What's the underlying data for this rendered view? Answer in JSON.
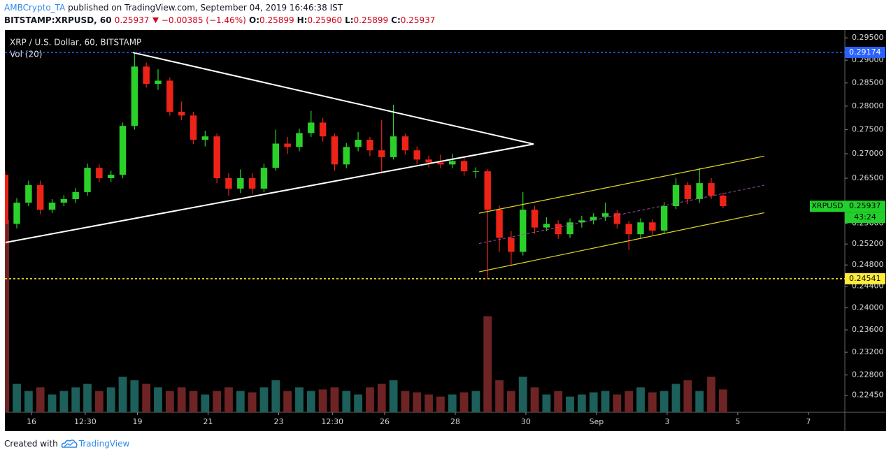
{
  "header": {
    "author": "AMBCrypto_TA",
    "published": "published on TradingView.com, September 04, 2019 16:46:38 IST",
    "symbol": "BITSTAMP:XRPUSD, 60",
    "price": "0.25937",
    "change": "−0.00385 (−1.46%)",
    "ohlc": [
      {
        "label": "O:",
        "value": "0.25899"
      },
      {
        "label": "H:",
        "value": "0.25960"
      },
      {
        "label": "L:",
        "value": "0.25899"
      },
      {
        "label": "C:",
        "value": "0.25937"
      }
    ]
  },
  "footer": {
    "text": "Created with",
    "brand": "TradingView"
  },
  "chart_data": {
    "type": "candlestick",
    "title": "XRP / U.S. Dollar, 60, BITSTAMP",
    "subtitle": "Vol (20)",
    "log_scale": true,
    "grid": false,
    "up_color": "#2bd12b",
    "down_color": "#ee2318",
    "volume_up_color": "#1d5f5a",
    "volume_down_color": "#6e2424",
    "xlim": [
      -18.1,
      552.8
    ],
    "ylim": [
      0.2216,
      0.2966
    ],
    "xticks": [
      {
        "value": 0,
        "label": "16"
      },
      {
        "value": 36.5,
        "label": "12:30"
      },
      {
        "value": 72,
        "label": "19"
      },
      {
        "value": 120,
        "label": "21"
      },
      {
        "value": 168,
        "label": "23"
      },
      {
        "value": 204.5,
        "label": "12:30"
      },
      {
        "value": 240,
        "label": "26"
      },
      {
        "value": 288,
        "label": "28"
      },
      {
        "value": 336,
        "label": "30"
      },
      {
        "value": 384,
        "label": "Sep"
      },
      {
        "value": 432,
        "label": "3"
      },
      {
        "value": 480,
        "label": "5"
      },
      {
        "value": 528,
        "label": "7"
      }
    ],
    "yticks": [
      {
        "value": 0.2245,
        "label": "0.22450"
      },
      {
        "value": 0.228,
        "label": "0.22800"
      },
      {
        "value": 0.232,
        "label": "0.23200"
      },
      {
        "value": 0.236,
        "label": "0.23600"
      },
      {
        "value": 0.24,
        "label": "0.24000"
      },
      {
        "value": 0.244,
        "label": "0.24400"
      },
      {
        "value": 0.248,
        "label": "0.24800"
      },
      {
        "value": 0.252,
        "label": "0.25200"
      },
      {
        "value": 0.256,
        "label": "0.25600"
      },
      {
        "value": 0.265,
        "label": "0.26500"
      },
      {
        "value": 0.27,
        "label": "0.27000"
      },
      {
        "value": 0.275,
        "label": "0.27500"
      },
      {
        "value": 0.28,
        "label": "0.28000"
      },
      {
        "value": 0.285,
        "label": "0.28500"
      },
      {
        "value": 0.29,
        "label": "0.29000"
      },
      {
        "value": 0.295,
        "label": "0.29500"
      }
    ],
    "x": [
      -18,
      -10,
      -2,
      6,
      14,
      22,
      30,
      38,
      46,
      54,
      62,
      70,
      78,
      86,
      94,
      102,
      110,
      118,
      126,
      134,
      142,
      150,
      158,
      166,
      174,
      182,
      190,
      198,
      206,
      214,
      222,
      230,
      238,
      246,
      254,
      262,
      270,
      278,
      286,
      294,
      302,
      310,
      318,
      326,
      334,
      342,
      350,
      358,
      366,
      374,
      382,
      390,
      398,
      406,
      414,
      422,
      430,
      438,
      446,
      454,
      462,
      470
    ],
    "open": [
      0.2657,
      0.2559,
      0.2601,
      0.2636,
      0.2587,
      0.2601,
      0.2608,
      0.2622,
      0.2671,
      0.265,
      0.2657,
      0.2758,
      0.2886,
      0.2848,
      0.2855,
      0.2788,
      0.278,
      0.2729,
      0.2736,
      0.265,
      0.2629,
      0.265,
      0.2629,
      0.2671,
      0.2721,
      0.2714,
      0.2743,
      0.2765,
      0.2736,
      0.2678,
      0.2714,
      0.2729,
      0.2707,
      0.2693,
      0.2736,
      0.2707,
      0.2688,
      0.2682,
      0.2678,
      0.2685,
      0.2664,
      0.2664,
      0.2587,
      0.2532,
      0.2505,
      0.2587,
      0.2552,
      0.2559,
      0.2539,
      0.2562,
      0.2566,
      0.2573,
      0.258,
      0.2559,
      0.2539,
      0.2562,
      0.2546,
      0.2594,
      0.2636,
      0.2608,
      0.264,
      0.2615
    ],
    "high": [
      0.2665,
      0.261,
      0.2645,
      0.2645,
      0.2608,
      0.2616,
      0.263,
      0.268,
      0.2678,
      0.2665,
      0.2765,
      0.2917,
      0.2895,
      0.288,
      0.2862,
      0.281,
      0.2788,
      0.2748,
      0.2742,
      0.266,
      0.2668,
      0.266,
      0.268,
      0.275,
      0.2735,
      0.2752,
      0.279,
      0.2775,
      0.2742,
      0.2722,
      0.2745,
      0.2735,
      0.277,
      0.2803,
      0.2742,
      0.2715,
      0.2696,
      0.2698,
      0.27,
      0.2692,
      0.2672,
      0.2668,
      0.2595,
      0.2545,
      0.2622,
      0.2595,
      0.2572,
      0.2566,
      0.257,
      0.2575,
      0.258,
      0.2601,
      0.2586,
      0.2565,
      0.257,
      0.2568,
      0.2602,
      0.265,
      0.2642,
      0.2671,
      0.265,
      0.262
    ],
    "low": [
      0.2518,
      0.255,
      0.2594,
      0.2578,
      0.258,
      0.2594,
      0.26,
      0.2615,
      0.2642,
      0.2643,
      0.265,
      0.275,
      0.284,
      0.2835,
      0.278,
      0.277,
      0.272,
      0.2715,
      0.264,
      0.2615,
      0.262,
      0.2618,
      0.2622,
      0.2665,
      0.27,
      0.2705,
      0.2735,
      0.2725,
      0.2665,
      0.267,
      0.2705,
      0.2695,
      0.2662,
      0.2688,
      0.2698,
      0.2678,
      0.2672,
      0.267,
      0.267,
      0.2655,
      0.265,
      0.2454,
      0.2505,
      0.2478,
      0.2498,
      0.254,
      0.2545,
      0.253,
      0.2532,
      0.2552,
      0.2558,
      0.2565,
      0.255,
      0.2508,
      0.2532,
      0.2538,
      0.254,
      0.2588,
      0.2598,
      0.26,
      0.2608,
      0.259
    ],
    "close": [
      0.2559,
      0.2601,
      0.2636,
      0.2587,
      0.2601,
      0.2608,
      0.2622,
      0.2671,
      0.265,
      0.2657,
      0.2758,
      0.2886,
      0.2848,
      0.2855,
      0.2788,
      0.278,
      0.2729,
      0.2736,
      0.265,
      0.2629,
      0.265,
      0.2629,
      0.2671,
      0.2721,
      0.2714,
      0.2743,
      0.2765,
      0.2736,
      0.2678,
      0.2714,
      0.2729,
      0.2707,
      0.2693,
      0.2736,
      0.2707,
      0.2688,
      0.2682,
      0.2678,
      0.2685,
      0.2664,
      0.2664,
      0.2587,
      0.2532,
      0.2505,
      0.2587,
      0.2552,
      0.2559,
      0.2539,
      0.2562,
      0.2566,
      0.2573,
      0.258,
      0.2559,
      0.2539,
      0.2562,
      0.2546,
      0.2594,
      0.2636,
      0.2608,
      0.264,
      0.2615,
      0.2594
    ],
    "volume": [
      270,
      40,
      30,
      35,
      25,
      30,
      35,
      40,
      30,
      35,
      50,
      45,
      40,
      35,
      30,
      35,
      30,
      25,
      30,
      35,
      30,
      28,
      35,
      45,
      30,
      35,
      30,
      32,
      35,
      30,
      25,
      35,
      40,
      45,
      30,
      28,
      25,
      22,
      25,
      28,
      30,
      135,
      45,
      30,
      50,
      35,
      25,
      30,
      22,
      25,
      28,
      30,
      25,
      30,
      35,
      28,
      30,
      40,
      45,
      30,
      50,
      32
    ],
    "trendlines": [
      {
        "x": [
          -17.6,
          341.3
        ],
        "y": [
          0.2523,
          0.272
        ],
        "color": "#ffffff",
        "style": "solid"
      },
      {
        "x": [
          68.9,
          341.3
        ],
        "y": [
          0.2917,
          0.272
        ],
        "color": "#ffffff",
        "style": "solid"
      },
      {
        "x": [
          304.2,
          498.1
        ],
        "y": [
          0.258,
          0.2695
        ],
        "color": "#e6d62a",
        "style": "solid"
      },
      {
        "x": [
          304.2,
          498.1
        ],
        "y": [
          0.2467,
          0.2581
        ],
        "color": "#e6d62a",
        "style": "solid"
      },
      {
        "x": [
          304.2,
          498.1
        ],
        "y": [
          0.2521,
          0.2636
        ],
        "color": "#9c4fb0",
        "style": "dashed"
      }
    ],
    "hlines": [
      {
        "value": 0.29174,
        "color": "#2962ff"
      },
      {
        "value": 0.24541,
        "color": "#ffeb3b"
      }
    ],
    "last_price": {
      "name": "XRPUSD",
      "value": 0.25937,
      "countdown": "43:24",
      "color": "#22d02b"
    }
  }
}
